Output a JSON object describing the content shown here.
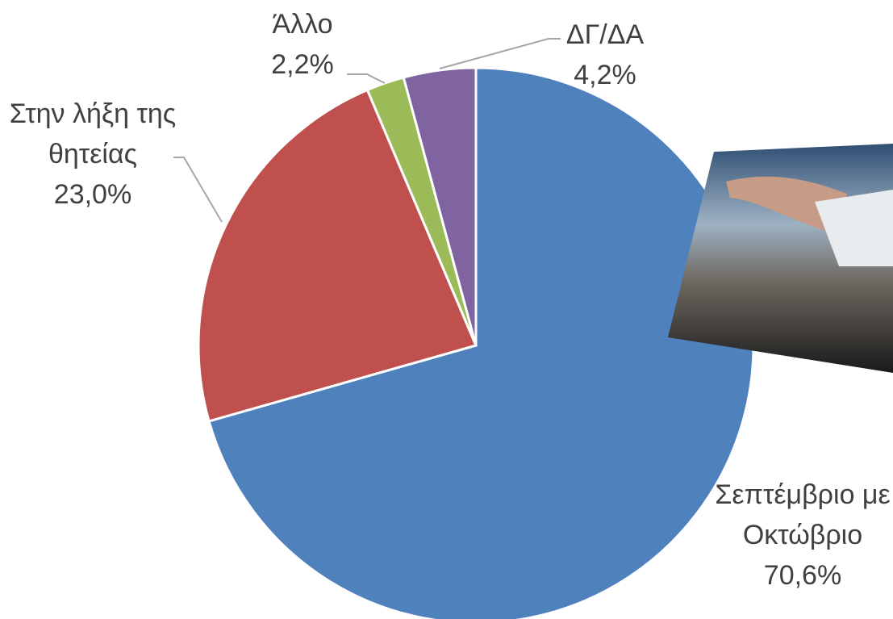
{
  "chart_data": {
    "type": "pie",
    "categories": [
      "Σεπτέμβριο με Οκτώβριο",
      "Στην λήξη της θητείας",
      "Άλλο",
      "ΔΓ/ΔΑ"
    ],
    "values": [
      70.6,
      23.0,
      2.2,
      4.2
    ],
    "value_labels": [
      "70,6%",
      "23,0%",
      "2,2%",
      "4,2%"
    ],
    "colors": [
      "#4f81bd",
      "#c0504d",
      "#9bbb59",
      "#8064a2"
    ]
  }
}
